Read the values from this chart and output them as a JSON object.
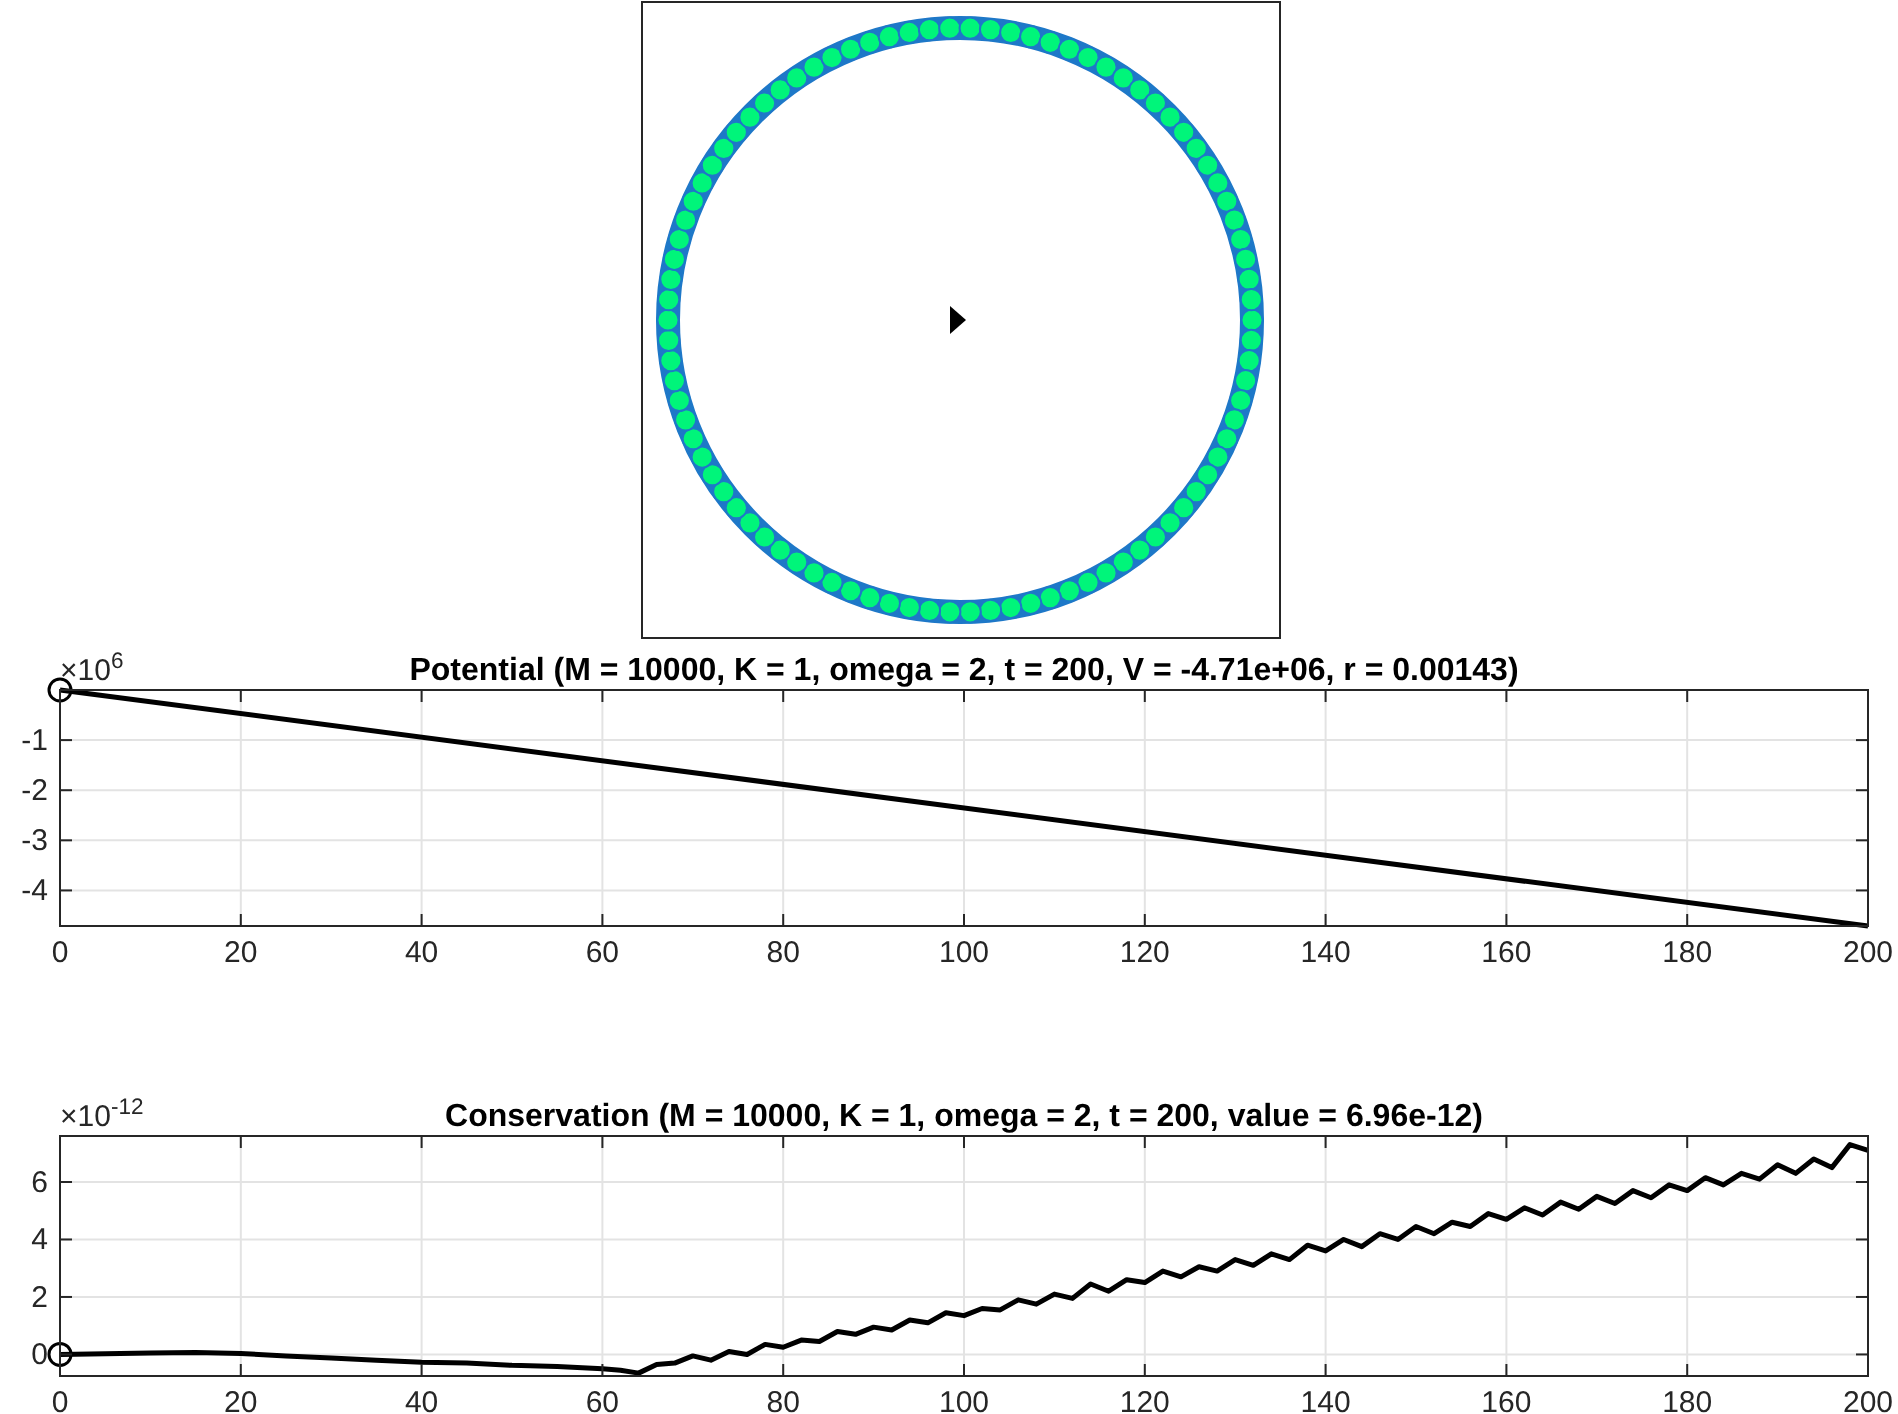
{
  "chart_data": [
    {
      "type": "line",
      "title": "Potential (M = 10000, K = 1, omega = 2, t = 200, V = -4.71e+06, r = 0.00143)",
      "annotations": [
        "×10$^{6}$"
      ],
      "xlim": [
        0,
        200
      ],
      "xticks": [
        0,
        20,
        40,
        60,
        80,
        100,
        120,
        140,
        160,
        180,
        200
      ],
      "ylim": [
        -4.71,
        0
      ],
      "yticks": [
        -4,
        -3,
        -2,
        -1
      ],
      "grid": true,
      "marker": "none",
      "line_style": "solid",
      "series": [
        {
          "color": "#000000",
          "x": [
            0,
            200
          ],
          "values": [
            0,
            -4.71
          ]
        },
        {
          "type": "scatter",
          "marker": "circle",
          "color": "#000000",
          "x": [
            0
          ],
          "values": [
            0
          ]
        }
      ]
    },
    {
      "type": "line",
      "title": "Conservation (M = 10000, K = 1, omega = 2, t = 200, value = 6.96e-12)",
      "annotations": [
        "×10$^{-12}$"
      ],
      "xlim": [
        0,
        200
      ],
      "xticks": [
        0,
        20,
        40,
        60,
        80,
        100,
        120,
        140,
        160,
        180,
        200
      ],
      "ylim": [
        -0.75,
        7.6
      ],
      "yticks": [
        0,
        2,
        4,
        6
      ],
      "grid": true,
      "marker": "none",
      "line_style": "solid",
      "series": [
        {
          "color": "#000000",
          "x": [
            0,
            5,
            10,
            15,
            20,
            25,
            30,
            35,
            40,
            45,
            50,
            55,
            60,
            62,
            64,
            66,
            68,
            70,
            72,
            74,
            76,
            78,
            80,
            82,
            84,
            86,
            88,
            90,
            92,
            94,
            96,
            98,
            100,
            102,
            104,
            106,
            108,
            110,
            112,
            114,
            116,
            118,
            120,
            122,
            124,
            126,
            128,
            130,
            132,
            134,
            136,
            138,
            140,
            142,
            144,
            146,
            148,
            150,
            152,
            154,
            156,
            158,
            160,
            162,
            164,
            166,
            168,
            170,
            172,
            174,
            176,
            178,
            180,
            182,
            184,
            186,
            188,
            190,
            192,
            194,
            196,
            198,
            200
          ],
          "values": [
            0,
            0.02,
            0.05,
            0.07,
            0.03,
            -0.05,
            -0.12,
            -0.2,
            -0.27,
            -0.3,
            -0.38,
            -0.42,
            -0.5,
            -0.55,
            -0.65,
            -0.35,
            -0.3,
            -0.05,
            -0.2,
            0.1,
            0,
            0.35,
            0.25,
            0.5,
            0.45,
            0.8,
            0.7,
            0.95,
            0.85,
            1.2,
            1.1,
            1.45,
            1.35,
            1.6,
            1.55,
            1.9,
            1.75,
            2.1,
            1.95,
            2.45,
            2.2,
            2.6,
            2.5,
            2.9,
            2.7,
            3.05,
            2.9,
            3.3,
            3.1,
            3.5,
            3.3,
            3.8,
            3.6,
            4,
            3.75,
            4.2,
            4,
            4.45,
            4.2,
            4.6,
            4.45,
            4.9,
            4.7,
            5.1,
            4.85,
            5.3,
            5.05,
            5.5,
            5.25,
            5.7,
            5.45,
            5.9,
            5.7,
            6.15,
            5.9,
            6.3,
            6.1,
            6.6,
            6.3,
            6.8,
            6.5,
            7.3,
            7.1
          ]
        },
        {
          "type": "scatter",
          "marker": "circle",
          "color": "#000000",
          "x": [
            0
          ],
          "values": [
            0
          ]
        }
      ]
    }
  ]
}
